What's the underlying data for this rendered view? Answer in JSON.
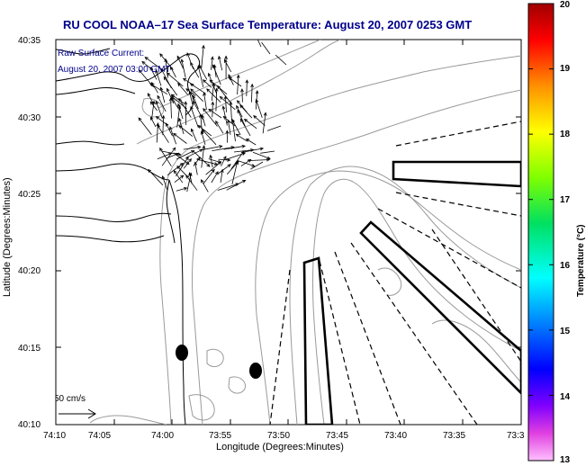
{
  "title": "RU COOL  NOAA–17  Sea Surface Temperature:  August 20, 2007 0253 GMT",
  "annotation": {
    "line1": "Raw Surface Current:",
    "line2": "August 20, 2007 03:00 GMT"
  },
  "scale_arrow_label": "50 cm/s",
  "axes": {
    "xlabel": "Longitude (Degrees:Minutes)",
    "ylabel": "Latitude (Degrees:Minutes)",
    "xticks": [
      "74:10",
      "74:05",
      "74:00",
      "73:55",
      "73:50",
      "73:45",
      "73:40",
      "73:35",
      "73:3"
    ],
    "yticks": [
      "40:35",
      "40:30",
      "40:25",
      "40:20",
      "40:15",
      "40:10"
    ]
  },
  "colorbar": {
    "label": "Temperature (°C)",
    "ticks": [
      "20",
      "19",
      "18",
      "17",
      "16",
      "15",
      "14",
      "13"
    ],
    "min": 13,
    "max": 20
  },
  "colors": {
    "title": "#00008b",
    "annotation": "#00008b",
    "contour": "#999999",
    "coast": "#000000"
  },
  "map_features": {
    "current_vectors": "raw surface current arrows over the NY Harbor approaches",
    "markers": [
      "filled-ellipse-1",
      "filled-ellipse-2"
    ],
    "polygons": [
      "narrow-channel-polygon",
      "diagonal-polygon",
      "east-polygon"
    ]
  }
}
